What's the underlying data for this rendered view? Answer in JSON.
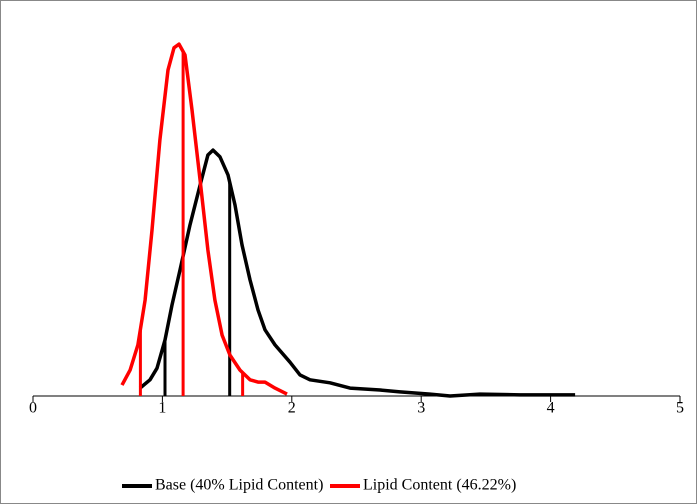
{
  "chart_data": {
    "type": "line",
    "xlim": [
      0,
      5
    ],
    "xticks": [
      0,
      1,
      2,
      3,
      4,
      5
    ],
    "ylim": [
      0,
      100
    ],
    "series": [
      {
        "name": "Base (40% Lipid Content)",
        "color": "#000000",
        "x": [
          0.827,
          0.904,
          0.958,
          1.02,
          1.074,
          1.136,
          1.213,
          1.291,
          1.352,
          1.391,
          1.445,
          1.507,
          1.561,
          1.615,
          1.677,
          1.739,
          1.793,
          1.87,
          1.986,
          2.063,
          2.141,
          2.295,
          2.45,
          2.682,
          2.836,
          3.068,
          3.223,
          3.454,
          3.764,
          4.189
        ],
        "values": [
          2.1,
          4.3,
          7.4,
          14.9,
          24.2,
          33.5,
          45.5,
          56.1,
          64.1,
          65.4,
          63.6,
          58.8,
          50.8,
          40.2,
          30.9,
          22.9,
          17.6,
          13.6,
          9.0,
          5.6,
          4.3,
          3.5,
          2.1,
          1.6,
          1.1,
          0.5,
          0,
          0.5,
          0.3,
          0.3
        ],
        "vlines": [
          1.02,
          1.52
        ]
      },
      {
        "name": "Lipid Content (46.22%)",
        "color": "#ff0000",
        "x": [
          0.688,
          0.75,
          0.811,
          0.866,
          0.92,
          0.981,
          1.043,
          1.09,
          1.128,
          1.175,
          1.229,
          1.291,
          1.352,
          1.406,
          1.461,
          1.522,
          1.6,
          1.677,
          1.739,
          1.793,
          1.87,
          1.963
        ],
        "values": [
          2.9,
          6.9,
          13.6,
          25.5,
          44.1,
          68.1,
          86.7,
          92.6,
          93.6,
          90.7,
          76.1,
          57.4,
          38.8,
          25.5,
          16.2,
          10.9,
          6.9,
          4.3,
          3.7,
          3.7,
          2.1,
          0.5
        ],
        "vlines": [
          0.83,
          1.16,
          1.62
        ]
      }
    ]
  }
}
